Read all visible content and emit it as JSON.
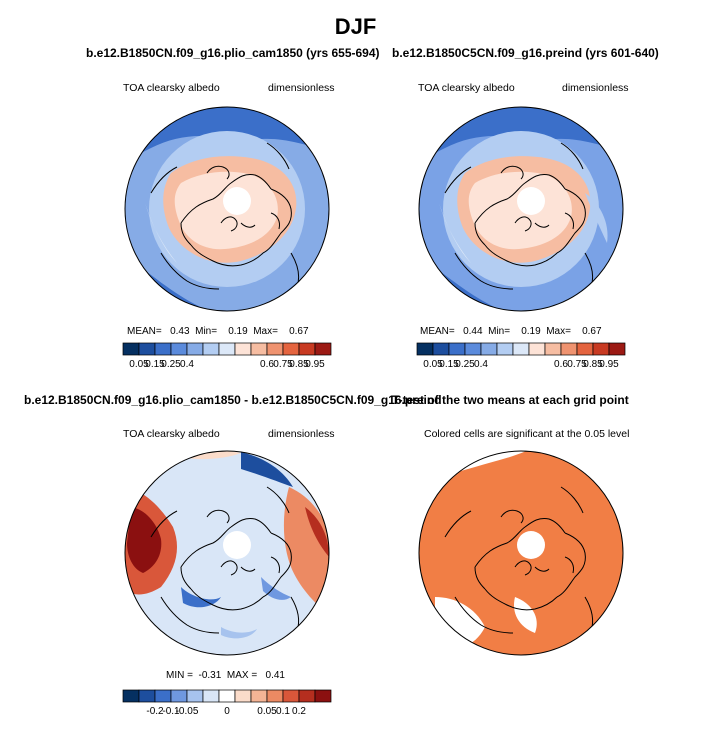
{
  "chart_data": {
    "type": "heatmap",
    "title": "DJF",
    "panels": [
      {
        "id": "top-left",
        "title": "b.e12.B1850CN.f09_g16.plio_cam1850 (yrs 655-694)",
        "left_label": "TOA clearsky albedo",
        "right_label": "dimensionless",
        "stats": {
          "mean": "0.43",
          "min": "0.19",
          "max": "0.67"
        },
        "stats_labels": {
          "mean": "MEAN=",
          "min": "Min=",
          "max": "Max="
        },
        "colorbar": {
          "ticks": [
            "0.05",
            "0.15",
            "0.25",
            "0.4",
            "0.6",
            "0.75",
            "0.85",
            "0.95"
          ],
          "colors": [
            "#053061",
            "#1d4e9e",
            "#3b6fc9",
            "#5b8bdc",
            "#86abe6",
            "#b3cdf2",
            "#dce8f8",
            "#fde3d7",
            "#f6bda2",
            "#ef9370",
            "#e4643f",
            "#c83a22",
            "#9c1a14"
          ]
        },
        "projection": "north-polar-stereographic",
        "value_range": [
          0.19,
          0.67
        ]
      },
      {
        "id": "top-right",
        "title": "b.e12.B1850C5CN.f09_g16.preind (yrs 601-640)",
        "left_label": "TOA clearsky albedo",
        "right_label": "dimensionless",
        "stats": {
          "mean": "0.44",
          "min": "0.19",
          "max": "0.67"
        },
        "stats_labels": {
          "mean": "MEAN=",
          "min": "Min=",
          "max": "Max="
        },
        "colorbar": {
          "ticks": [
            "0.05",
            "0.15",
            "0.25",
            "0.4",
            "0.6",
            "0.75",
            "0.85",
            "0.95"
          ],
          "colors": [
            "#053061",
            "#1d4e9e",
            "#3b6fc9",
            "#5b8bdc",
            "#86abe6",
            "#b3cdf2",
            "#dce8f8",
            "#fde3d7",
            "#f6bda2",
            "#ef9370",
            "#e4643f",
            "#c83a22",
            "#9c1a14"
          ]
        },
        "projection": "north-polar-stereographic",
        "value_range": [
          0.19,
          0.67
        ]
      },
      {
        "id": "bottom-left",
        "title": "b.e12.B1850CN.f09_g16.plio_cam1850 - b.e12.B1850C5CN.f09_g16.preind",
        "left_label": "TOA clearsky albedo",
        "right_label": "dimensionless",
        "stats": {
          "min": "-0.31",
          "max": "0.41"
        },
        "stats_labels": {
          "min": "MIN =",
          "max": "MAX ="
        },
        "colorbar": {
          "ticks": [
            "-0.2",
            "-0.1",
            "-0.05",
            "0",
            "0.05",
            "0.1",
            "0.2"
          ],
          "colors": [
            "#053061",
            "#1d4e9e",
            "#3b6fc9",
            "#6f98e0",
            "#a7c3ee",
            "#d9e6f7",
            "#ffffff",
            "#fbdcca",
            "#f4b495",
            "#ec8a63",
            "#d9573a",
            "#b52e1f",
            "#8b1010"
          ]
        },
        "projection": "north-polar-stereographic",
        "value_range": [
          -0.31,
          0.41
        ]
      },
      {
        "id": "bottom-right",
        "title": "T-test of the two means at each grid point",
        "subtitle": "Colored cells are significant at the 0.05 level",
        "projection": "north-polar-stereographic",
        "fill_color": "#f17e45"
      }
    ]
  }
}
